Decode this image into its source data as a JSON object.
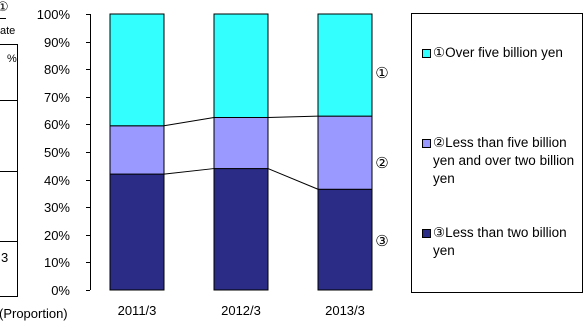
{
  "chart_data": {
    "type": "bar",
    "stacked": true,
    "percent": true,
    "categories": [
      "2011/3",
      "2012/3",
      "2013/3"
    ],
    "series": [
      {
        "name": "③Less than two billion yen",
        "values": [
          42,
          44,
          36.5
        ],
        "color": "#2b2c86"
      },
      {
        "name": "②Less than five billion yen and over two billion yen",
        "values": [
          17.5,
          18.5,
          26.5
        ],
        "color": "#9999ff"
      },
      {
        "name": "①Over five billion yen",
        "values": [
          40.5,
          37.5,
          37
        ],
        "color": "#33ffff"
      }
    ],
    "ylim": [
      0,
      100
    ],
    "yticks": [
      "0%",
      "10%",
      "20%",
      "30%",
      "40%",
      "50%",
      "60%",
      "70%",
      "80%",
      "90%",
      "100%"
    ],
    "ylabel": "(Proportion)",
    "segment_markers": [
      "①",
      "②",
      "③"
    ],
    "legend": {
      "placement": "right",
      "items": [
        {
          "label": "①Over five billion yen",
          "color": "#33ffff"
        },
        {
          "label": "②Less than five billion yen and over two billion yen",
          "color": "#9999ff"
        },
        {
          "label": "③Less than two billion yen",
          "color": "#2b2c86"
        }
      ]
    }
  },
  "left_table_fragment": {
    "marker": "①",
    "header": "ate",
    "unit": "%",
    "value": "3"
  }
}
